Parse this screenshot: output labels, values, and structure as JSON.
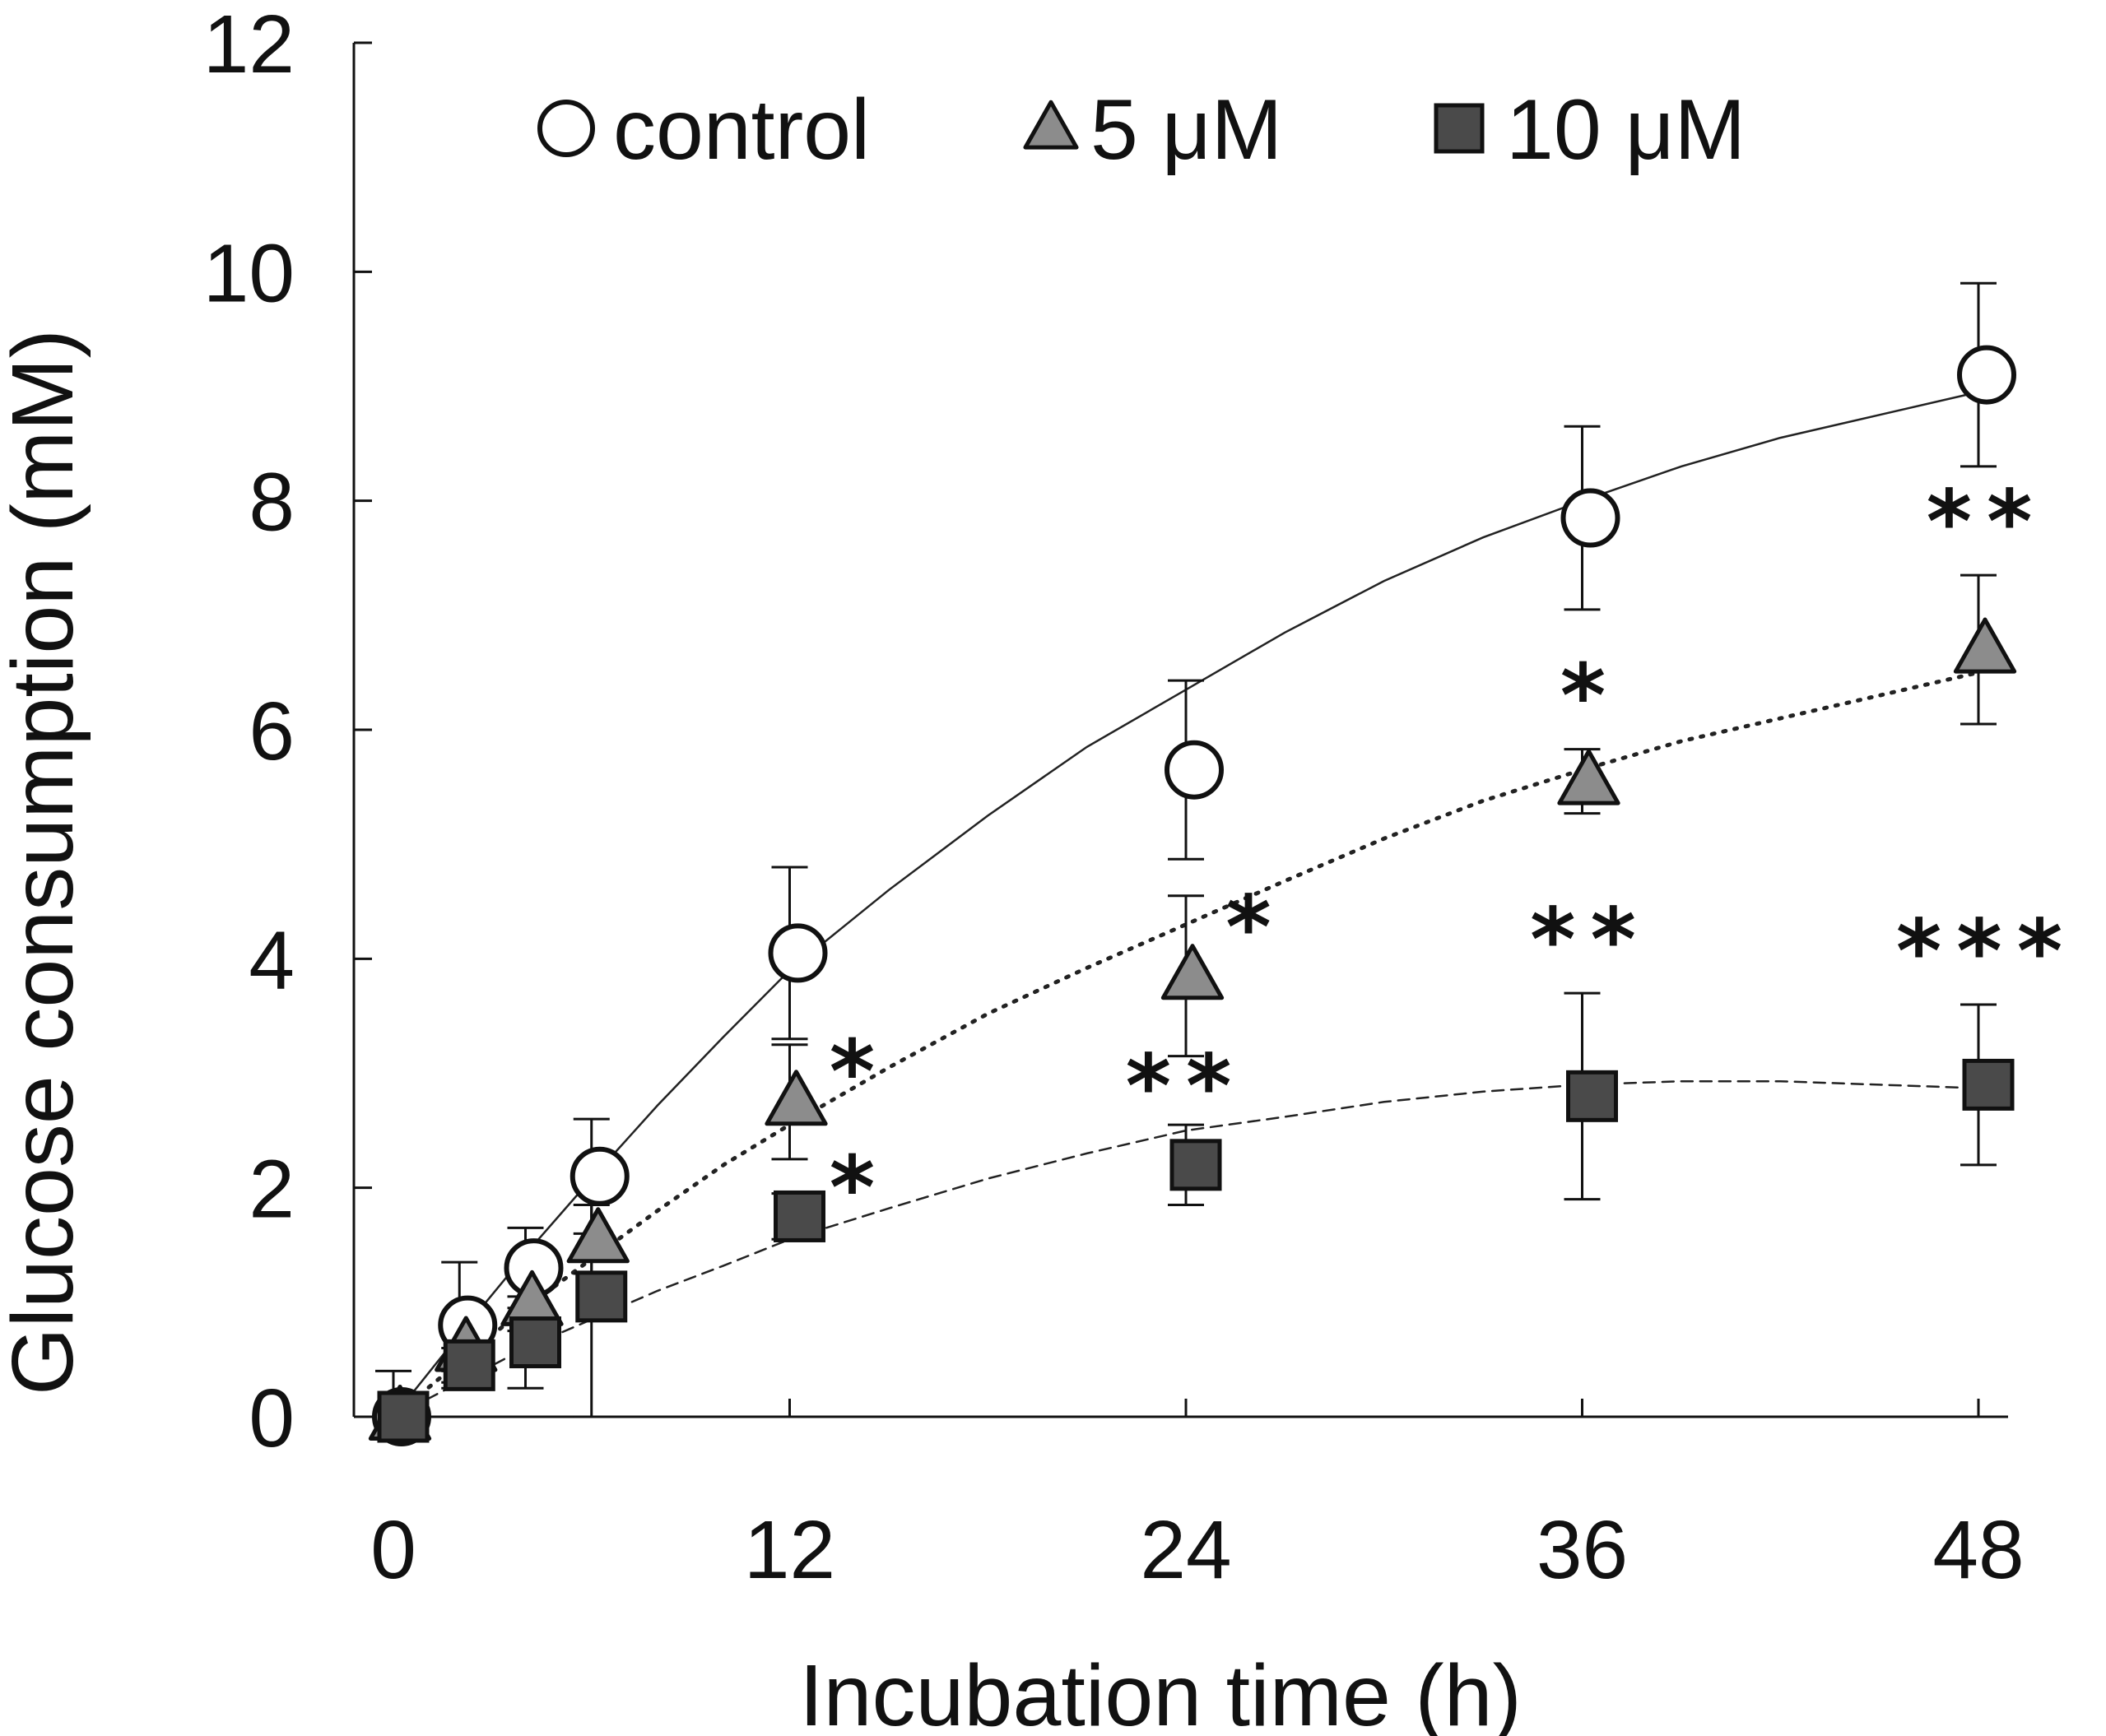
{
  "chart_data": {
    "type": "line",
    "title": "",
    "xlabel": "Incubation time (h)",
    "ylabel": "Glucose consumption (mM)",
    "xlim": [
      -1.5,
      50
    ],
    "ylim": [
      0,
      12
    ],
    "xticks": [
      0,
      12,
      24,
      36,
      48
    ],
    "xtick_labels": [
      "0",
      "12",
      "24",
      "36",
      "48"
    ],
    "yticks": [
      0,
      2,
      4,
      6,
      8,
      10,
      12
    ],
    "ytick_labels": [
      "0",
      "2",
      "4",
      "6",
      "8",
      "10",
      "12"
    ],
    "legend_position": "top",
    "series": [
      {
        "name": "control",
        "marker": "circle",
        "color": "#ffffff",
        "line_style": "solid",
        "points": [
          {
            "x": 0,
            "y": 0.0,
            "err": 0.4,
            "sig": ""
          },
          {
            "x": 2,
            "y": 0.8,
            "err": 0.55,
            "sig": ""
          },
          {
            "x": 4,
            "y": 1.3,
            "err": 0.35,
            "sig": ""
          },
          {
            "x": 6,
            "y": 2.1,
            "err": 0.5,
            "sig": ""
          },
          {
            "x": 12,
            "y": 4.05,
            "err": 0.75,
            "sig": ""
          },
          {
            "x": 24,
            "y": 5.65,
            "err": 0.78,
            "sig": ""
          },
          {
            "x": 36,
            "y": 7.85,
            "err": 0.8,
            "sig": ""
          },
          {
            "x": 48,
            "y": 9.1,
            "err": 0.8,
            "sig": ""
          }
        ],
        "fit": [
          [
            0,
            0
          ],
          [
            2,
            0.72
          ],
          [
            4,
            1.42
          ],
          [
            6,
            2.08
          ],
          [
            8,
            2.72
          ],
          [
            10,
            3.32
          ],
          [
            12,
            3.9
          ],
          [
            15,
            4.6
          ],
          [
            18,
            5.25
          ],
          [
            21,
            5.85
          ],
          [
            24,
            6.35
          ],
          [
            27,
            6.85
          ],
          [
            30,
            7.3
          ],
          [
            33,
            7.68
          ],
          [
            36,
            8.0
          ],
          [
            39,
            8.3
          ],
          [
            42,
            8.55
          ],
          [
            45,
            8.75
          ],
          [
            48,
            8.95
          ]
        ]
      },
      {
        "name": "5 μM",
        "marker": "triangle",
        "color": "#8c8c8c",
        "line_style": "dotted",
        "points": [
          {
            "x": 0,
            "y": 0.0,
            "err": 0.1,
            "sig": ""
          },
          {
            "x": 2,
            "y": 0.6,
            "err": 0.2,
            "sig": ""
          },
          {
            "x": 4,
            "y": 1.0,
            "err": 0.25,
            "sig": ""
          },
          {
            "x": 6,
            "y": 1.55,
            "err": 0.3,
            "sig": ""
          },
          {
            "x": 12,
            "y": 2.75,
            "err": 0.5,
            "sig": "*"
          },
          {
            "x": 24,
            "y": 3.85,
            "err": 0.7,
            "sig": "*"
          },
          {
            "x": 36,
            "y": 5.55,
            "err": 0.28,
            "sig": "*"
          },
          {
            "x": 48,
            "y": 6.7,
            "err": 0.65,
            "sig": "**"
          }
        ],
        "fit": [
          [
            0,
            0
          ],
          [
            2,
            0.48
          ],
          [
            4,
            0.95
          ],
          [
            6,
            1.38
          ],
          [
            8,
            1.8
          ],
          [
            10,
            2.2
          ],
          [
            12,
            2.55
          ],
          [
            15,
            3.05
          ],
          [
            18,
            3.52
          ],
          [
            21,
            3.92
          ],
          [
            24,
            4.3
          ],
          [
            27,
            4.68
          ],
          [
            30,
            5.05
          ],
          [
            33,
            5.38
          ],
          [
            36,
            5.65
          ],
          [
            39,
            5.9
          ],
          [
            42,
            6.1
          ],
          [
            45,
            6.3
          ],
          [
            48,
            6.5
          ]
        ]
      },
      {
        "name": "10 μM",
        "marker": "square",
        "color": "#4a4a4a",
        "line_style": "dashed",
        "points": [
          {
            "x": 0,
            "y": 0.0,
            "err": 0.1,
            "sig": ""
          },
          {
            "x": 2,
            "y": 0.45,
            "err": 0.15,
            "sig": ""
          },
          {
            "x": 4,
            "y": 0.65,
            "err": 0.4,
            "sig": ""
          },
          {
            "x": 6,
            "y": 1.05,
            "err": 1.05,
            "sig": ""
          },
          {
            "x": 12,
            "y": 1.75,
            "err": 0.2,
            "sig": "*"
          },
          {
            "x": 24,
            "y": 2.2,
            "err": 0.35,
            "sig": "**"
          },
          {
            "x": 36,
            "y": 2.8,
            "err": 0.9,
            "sig": "**"
          },
          {
            "x": 48,
            "y": 2.9,
            "err": 0.7,
            "sig": "***"
          }
        ],
        "fit": [
          [
            0,
            0
          ],
          [
            2,
            0.3
          ],
          [
            4,
            0.6
          ],
          [
            6,
            0.85
          ],
          [
            8,
            1.1
          ],
          [
            10,
            1.32
          ],
          [
            12,
            1.55
          ],
          [
            15,
            1.82
          ],
          [
            18,
            2.08
          ],
          [
            21,
            2.3
          ],
          [
            24,
            2.5
          ],
          [
            27,
            2.62
          ],
          [
            30,
            2.75
          ],
          [
            33,
            2.84
          ],
          [
            36,
            2.9
          ],
          [
            39,
            2.93
          ],
          [
            42,
            2.93
          ],
          [
            45,
            2.9
          ],
          [
            48,
            2.87
          ]
        ]
      }
    ]
  }
}
